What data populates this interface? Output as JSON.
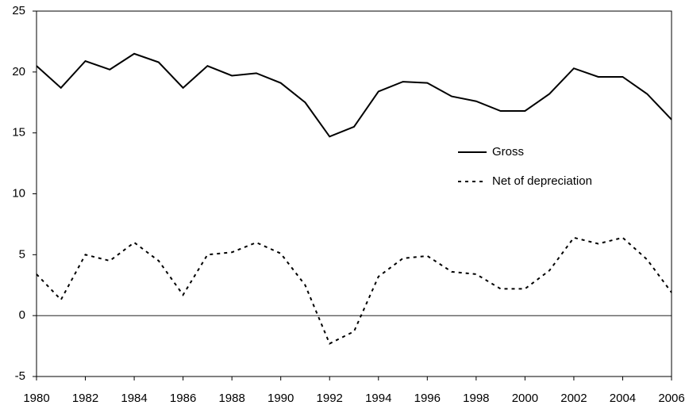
{
  "chart_data": {
    "type": "line",
    "x": [
      1980,
      1981,
      1982,
      1983,
      1984,
      1985,
      1986,
      1987,
      1988,
      1989,
      1990,
      1991,
      1992,
      1993,
      1994,
      1995,
      1996,
      1997,
      1998,
      1999,
      2000,
      2001,
      2002,
      2003,
      2004,
      2005,
      2006
    ],
    "series": [
      {
        "name": "Gross",
        "color": "#000000",
        "style": "solid",
        "values": [
          20.5,
          18.7,
          20.9,
          20.2,
          21.5,
          20.8,
          18.7,
          20.5,
          19.7,
          19.9,
          19.1,
          17.5,
          14.7,
          15.5,
          18.4,
          19.2,
          19.1,
          18.0,
          17.6,
          16.8,
          16.8,
          18.2,
          20.3,
          19.6,
          19.6,
          18.2,
          16.1
        ]
      },
      {
        "name": "Net of depreciation",
        "color": "#000000",
        "style": "dashed",
        "values": [
          3.4,
          1.3,
          5.0,
          4.5,
          6.0,
          4.5,
          1.7,
          5.0,
          5.2,
          6.0,
          5.1,
          2.5,
          -2.3,
          -1.3,
          3.2,
          4.7,
          4.9,
          3.6,
          3.4,
          2.2,
          2.2,
          3.7,
          6.4,
          5.9,
          6.4,
          4.6,
          1.9
        ]
      }
    ],
    "xlim": [
      1980,
      2006
    ],
    "xticks": [
      1980,
      1982,
      1984,
      1986,
      1988,
      1990,
      1992,
      1994,
      1996,
      1998,
      2000,
      2002,
      2004,
      2006
    ],
    "ylim": [
      -5,
      25
    ],
    "yticks": [
      -5,
      0,
      5,
      10,
      15,
      20,
      25
    ],
    "grid": false,
    "legend": "right"
  }
}
